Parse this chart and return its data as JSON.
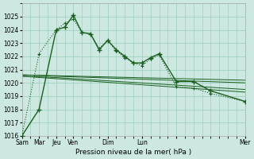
{
  "bg_color": "#cce8e0",
  "grid_color": "#99ccbb",
  "line_color": "#1a5e20",
  "xlabel": "Pression niveau de la mer( hPa )",
  "ylim": [
    1016,
    1026
  ],
  "yticks": [
    1016,
    1017,
    1018,
    1019,
    1020,
    1021,
    1022,
    1023,
    1024,
    1025
  ],
  "xtick_positions": [
    0,
    1,
    2,
    3,
    5,
    7,
    9,
    13
  ],
  "xtick_labels": [
    "Sam",
    "Mar",
    "Jeu",
    "Ven",
    "Dim",
    "Lun",
    "",
    "Mer"
  ],
  "xlim": [
    0,
    13
  ],
  "line1_x": [
    0,
    1,
    2,
    2.5,
    3,
    3.5,
    4,
    4.5,
    5,
    5.5,
    6,
    6.5,
    7,
    7.5,
    8,
    9,
    10,
    11,
    13
  ],
  "line1_y": [
    1016.0,
    1018.0,
    1024.0,
    1024.2,
    1025.1,
    1023.8,
    1023.7,
    1022.5,
    1023.2,
    1022.5,
    1022.0,
    1021.5,
    1021.5,
    1021.9,
    1022.2,
    1020.1,
    1020.1,
    1019.4,
    1018.6
  ],
  "line1_style": "solid",
  "line1_marker": "+",
  "line2_x": [
    0,
    1,
    2,
    2.5,
    3,
    3.5,
    4,
    4.5,
    5,
    5.5,
    6,
    6.5,
    7,
    7.5,
    8,
    9,
    10,
    11,
    13
  ],
  "line2_y": [
    1016.0,
    1022.2,
    1024.0,
    1024.5,
    1024.8,
    1023.8,
    1023.7,
    1022.6,
    1023.2,
    1022.4,
    1021.9,
    1021.5,
    1021.3,
    1021.8,
    1022.1,
    1019.7,
    1019.6,
    1019.2,
    1018.6
  ],
  "line2_style": "dotted",
  "line2_marker": "+",
  "line3_x": [
    0,
    1,
    2,
    13
  ],
  "line3_y": [
    1020.6,
    1020.55,
    1020.5,
    1020.0
  ],
  "line3_style": "solid",
  "line4_x": [
    0,
    1,
    2,
    13
  ],
  "line4_y": [
    1020.5,
    1020.45,
    1020.4,
    1019.5
  ],
  "line4_style": "solid",
  "line5_x": [
    0,
    13
  ],
  "line5_y": [
    1020.6,
    1020.2
  ],
  "line5_style": "solid",
  "line6_x": [
    0,
    13
  ],
  "line6_y": [
    1020.5,
    1019.3
  ],
  "line6_style": "solid"
}
